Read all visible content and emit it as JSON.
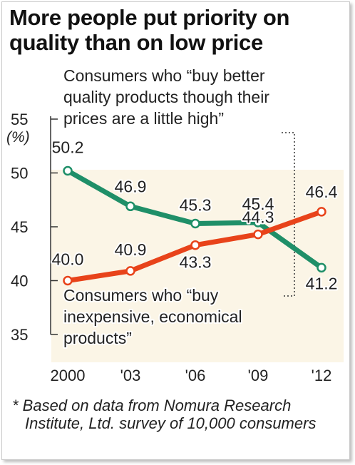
{
  "title": "More people put priority on quality than on low price",
  "footnote": "* Based on data from Nomura Research Institute, Ltd. survey of 10,000 consumers",
  "colors": {
    "quality": "#1f8f68",
    "inexpensive": "#e8431a",
    "panel": "#fbf5e6"
  },
  "chart_data": {
    "type": "line",
    "categories": [
      "2000",
      "'03",
      "'06",
      "'09",
      "'12"
    ],
    "ylabel": "(%)",
    "ylim": [
      35,
      55
    ],
    "yticks": [
      "35",
      "40",
      "45",
      "50",
      "55"
    ],
    "series": [
      {
        "key": "quality",
        "name": "Consumers who “buy better quality products though their prices are a little high”",
        "values": [
          50.2,
          46.9,
          45.3,
          45.4,
          41.2
        ],
        "value_labels": [
          "50.2",
          "46.9",
          "45.3",
          "45.4",
          "41.2"
        ]
      },
      {
        "key": "inexpensive",
        "name": "Consumers who “buy inexpensive, economical products”",
        "values": [
          40.0,
          40.9,
          43.3,
          44.3,
          46.4
        ],
        "value_labels": [
          "40.0",
          "40.9",
          "43.3",
          "44.3",
          "46.4"
        ]
      }
    ]
  }
}
